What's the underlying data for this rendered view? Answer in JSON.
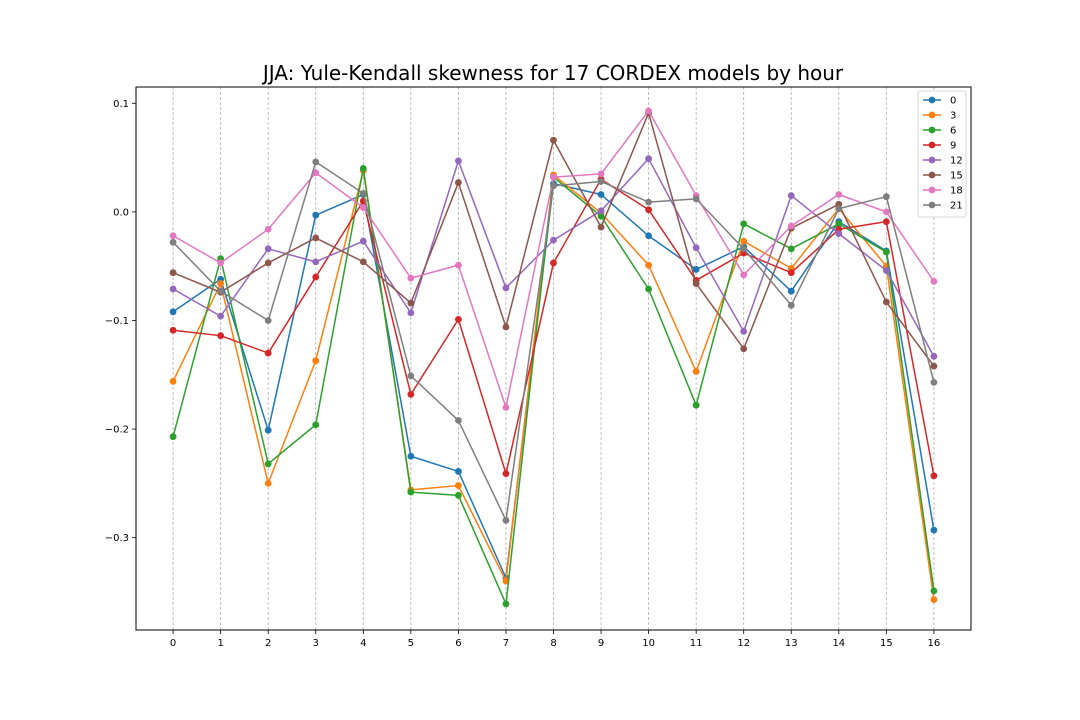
{
  "chart_data": {
    "type": "line",
    "title": "JJA: Yule-Kendall skewness for 17 CORDEX models by hour",
    "xlabel": "",
    "ylabel": "",
    "x": [
      0,
      1,
      2,
      3,
      4,
      5,
      6,
      7,
      8,
      9,
      10,
      11,
      12,
      13,
      14,
      15,
      16
    ],
    "x_tick_labels": [
      "0",
      "1",
      "2",
      "3",
      "4",
      "5",
      "6",
      "7",
      "8",
      "9",
      "10",
      "11",
      "12",
      "13",
      "14",
      "15",
      "16"
    ],
    "xlim": [
      -0.78,
      16.78
    ],
    "ylim": [
      -0.385,
      0.115
    ],
    "y_ticks": [
      0.1,
      0.0,
      -0.1,
      -0.2,
      -0.3
    ],
    "y_tick_labels": [
      "0.1",
      "0.0",
      "−0.1",
      "−0.2",
      "−0.3"
    ],
    "grid": "vertical dashed at x ticks",
    "legend_position": "top-right",
    "series": [
      {
        "name": "0",
        "color": "#1f77b4",
        "values": [
          -0.092,
          -0.062,
          -0.201,
          -0.003,
          0.016,
          -0.225,
          -0.239,
          -0.337,
          0.026,
          0.016,
          -0.022,
          -0.053,
          -0.032,
          -0.073,
          -0.009,
          -0.036,
          -0.293
        ]
      },
      {
        "name": "3",
        "color": "#ff7f0e",
        "values": [
          -0.156,
          -0.066,
          -0.25,
          -0.137,
          0.038,
          -0.256,
          -0.252,
          -0.34,
          0.034,
          -0.001,
          -0.049,
          -0.147,
          -0.027,
          -0.052,
          0.003,
          -0.05,
          -0.357
        ]
      },
      {
        "name": "6",
        "color": "#2ca02c",
        "values": [
          -0.207,
          -0.043,
          -0.232,
          -0.196,
          0.04,
          -0.258,
          -0.261,
          -0.361,
          0.032,
          -0.004,
          -0.071,
          -0.178,
          -0.011,
          -0.034,
          -0.011,
          -0.037,
          -0.349
        ]
      },
      {
        "name": "9",
        "color": "#d62728",
        "values": [
          -0.109,
          -0.114,
          -0.13,
          -0.06,
          0.01,
          -0.168,
          -0.099,
          -0.241,
          -0.047,
          0.03,
          0.002,
          -0.063,
          -0.038,
          -0.056,
          -0.016,
          -0.009,
          -0.243
        ]
      },
      {
        "name": "12",
        "color": "#9467bd",
        "values": [
          -0.071,
          -0.096,
          -0.034,
          -0.046,
          -0.027,
          -0.093,
          0.047,
          -0.07,
          -0.026,
          0.001,
          0.049,
          -0.033,
          -0.11,
          0.015,
          -0.02,
          -0.054,
          -0.133
        ]
      },
      {
        "name": "15",
        "color": "#8c564b",
        "values": [
          -0.056,
          -0.074,
          -0.047,
          -0.024,
          -0.046,
          -0.084,
          0.027,
          -0.106,
          0.066,
          -0.014,
          0.091,
          -0.066,
          -0.126,
          -0.015,
          0.007,
          -0.083,
          -0.142
        ]
      },
      {
        "name": "18",
        "color": "#e377c2",
        "values": [
          -0.022,
          -0.047,
          -0.016,
          0.036,
          0.004,
          -0.061,
          -0.049,
          -0.18,
          0.032,
          0.035,
          0.093,
          0.015,
          -0.058,
          -0.013,
          0.016,
          0.0,
          -0.064
        ]
      },
      {
        "name": "21",
        "color": "#7f7f7f",
        "values": [
          -0.028,
          -0.073,
          -0.1,
          0.046,
          0.017,
          -0.151,
          -0.192,
          -0.284,
          0.024,
          0.028,
          0.009,
          0.012,
          -0.034,
          -0.086,
          0.003,
          0.014,
          -0.157
        ]
      }
    ]
  }
}
